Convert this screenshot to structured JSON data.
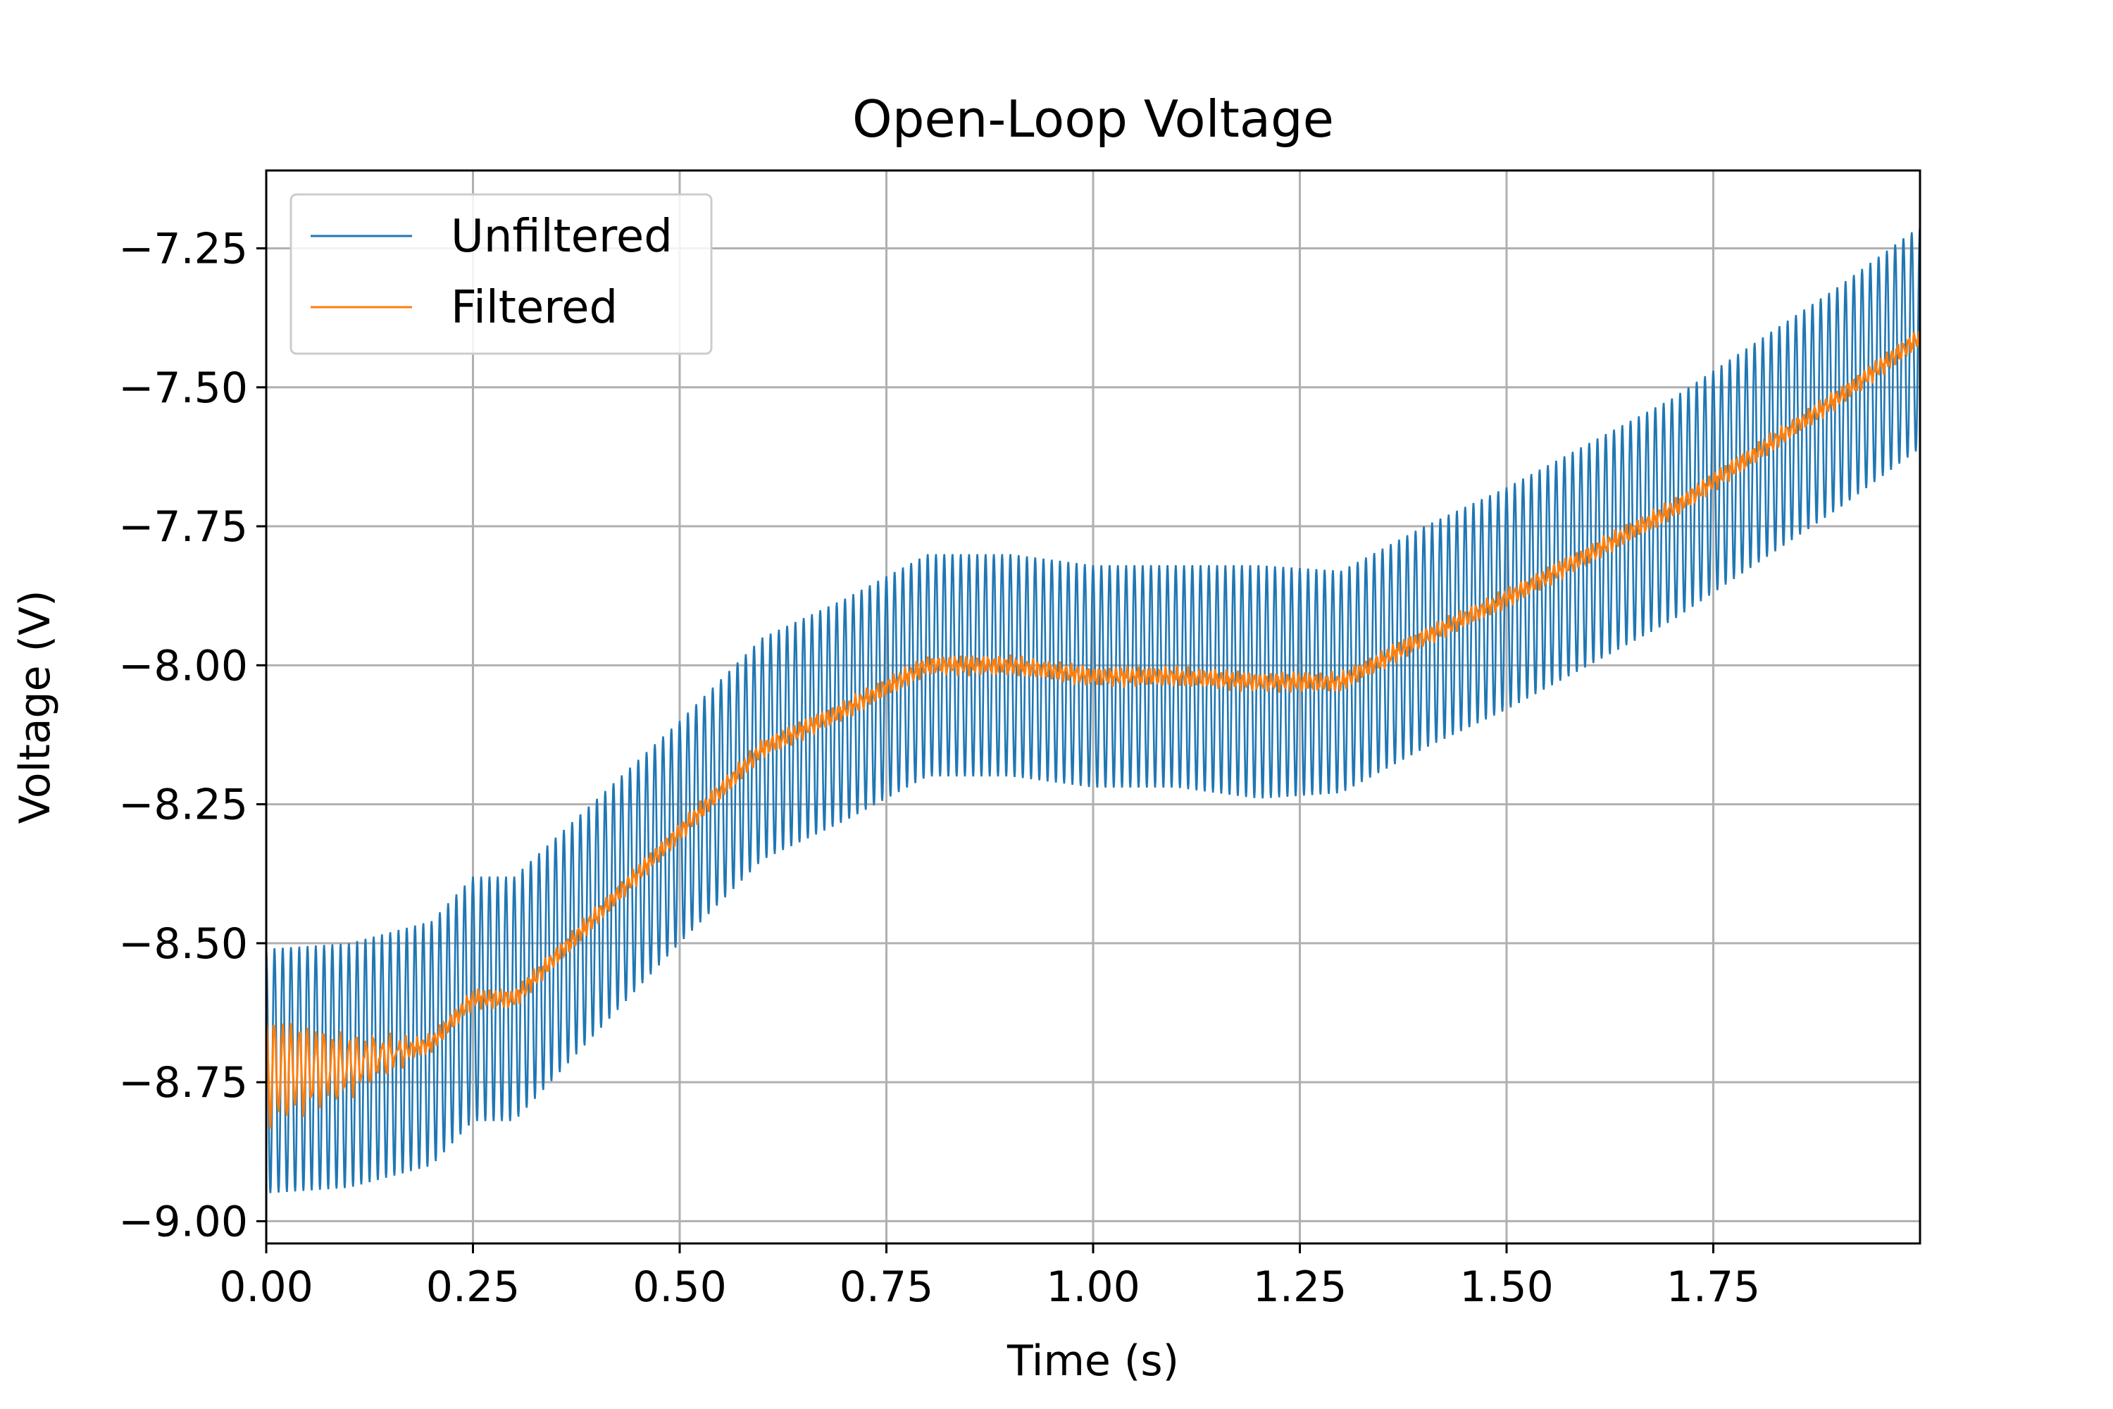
{
  "chart_data": {
    "type": "line",
    "title": "Open-Loop Voltage",
    "xlabel": "Time (s)",
    "ylabel": "Voltage (V)",
    "xlim": [
      0.0,
      2.0
    ],
    "ylim": [
      -9.04,
      -7.11
    ],
    "grid": true,
    "legend_position": "top-left",
    "xticks": [
      0.0,
      0.25,
      0.5,
      0.75,
      1.0,
      1.25,
      1.5,
      1.75
    ],
    "xtick_labels": [
      "0.00",
      "0.25",
      "0.50",
      "0.75",
      "1.00",
      "1.25",
      "1.50",
      "1.75"
    ],
    "yticks": [
      -9.0,
      -8.75,
      -8.5,
      -8.25,
      -8.0,
      -7.75,
      -7.5,
      -7.25
    ],
    "ytick_labels": [
      "−9.00",
      "−8.75",
      "−8.50",
      "−8.25",
      "−8.00",
      "−7.75",
      "−7.50",
      "−7.25"
    ],
    "x": [
      0.0,
      0.1,
      0.2,
      0.25,
      0.3,
      0.4,
      0.5,
      0.6,
      0.7,
      0.8,
      0.9,
      1.0,
      1.1,
      1.2,
      1.3,
      1.4,
      1.5,
      1.6,
      1.7,
      1.8,
      1.9,
      2.0
    ],
    "series": [
      {
        "name": "Unfiltered",
        "color": "#1f77b4",
        "values": [
          -8.73,
          -8.72,
          -8.68,
          -8.6,
          -8.6,
          -8.45,
          -8.3,
          -8.15,
          -8.08,
          -8.0,
          -8.0,
          -8.02,
          -8.02,
          -8.03,
          -8.03,
          -7.95,
          -7.88,
          -7.8,
          -7.72,
          -7.62,
          -7.52,
          -7.41
        ],
        "oscillation_amplitude": [
          0.22,
          0.22,
          0.22,
          0.22,
          0.22,
          0.21,
          0.2,
          0.2,
          0.2,
          0.2,
          0.2,
          0.2,
          0.2,
          0.21,
          0.2,
          0.2,
          0.2,
          0.2,
          0.2,
          0.2,
          0.2,
          0.2
        ]
      },
      {
        "name": "Filtered",
        "color": "#ff7f0e",
        "values": [
          -8.73,
          -8.72,
          -8.68,
          -8.6,
          -8.6,
          -8.45,
          -8.3,
          -8.15,
          -8.08,
          -8.0,
          -8.0,
          -8.02,
          -8.02,
          -8.03,
          -8.03,
          -7.95,
          -7.88,
          -7.8,
          -7.72,
          -7.62,
          -7.52,
          -7.41
        ]
      }
    ]
  }
}
